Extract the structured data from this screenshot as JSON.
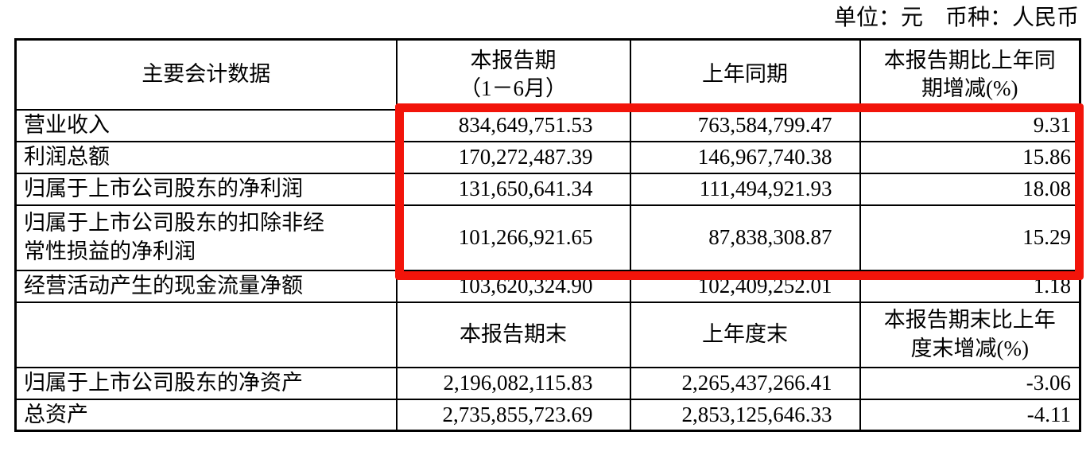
{
  "page": {
    "unit_line": "单位：元　币种：人民币"
  },
  "table": {
    "period_headers": {
      "metric": "主要会计数据",
      "current": "本报告期\n（1－6月）",
      "prior": "上年同期",
      "change": "本报告期比上年同\n期增减(%)"
    },
    "balance_headers": {
      "metric": "",
      "current": "本报告期末",
      "prior": "上年度末",
      "change": "本报告期末比上年\n度末增减(%)"
    },
    "period_rows": [
      {
        "label": "营业收入",
        "current": "834,649,751.53",
        "prior": "763,584,799.47",
        "change": "9.31"
      },
      {
        "label": "利润总额",
        "current": "170,272,487.39",
        "prior": "146,967,740.38",
        "change": "15.86"
      },
      {
        "label": "归属于上市公司股东的净利润",
        "current": "131,650,641.34",
        "prior": "111,494,921.93",
        "change": "18.08"
      },
      {
        "label": "归属于上市公司股东的扣除非经\n常性损益的净利润",
        "current": "101,266,921.65",
        "prior": "87,838,308.87",
        "change": "15.29"
      },
      {
        "label": "经营活动产生的现金流量净额",
        "current": "103,620,324.90",
        "prior": "102,409,252.01",
        "change": "1.18"
      }
    ],
    "balance_rows": [
      {
        "label": "归属于上市公司股东的净资产",
        "current": "2,196,082,115.83",
        "prior": "2,265,437,266.41",
        "change": "-3.06"
      },
      {
        "label": "总资产",
        "current": "2,735,855,723.69",
        "prior": "2,853,125,646.33",
        "change": "-4.11"
      }
    ]
  },
  "annotation": {
    "highlight_color": "#f2140a"
  }
}
